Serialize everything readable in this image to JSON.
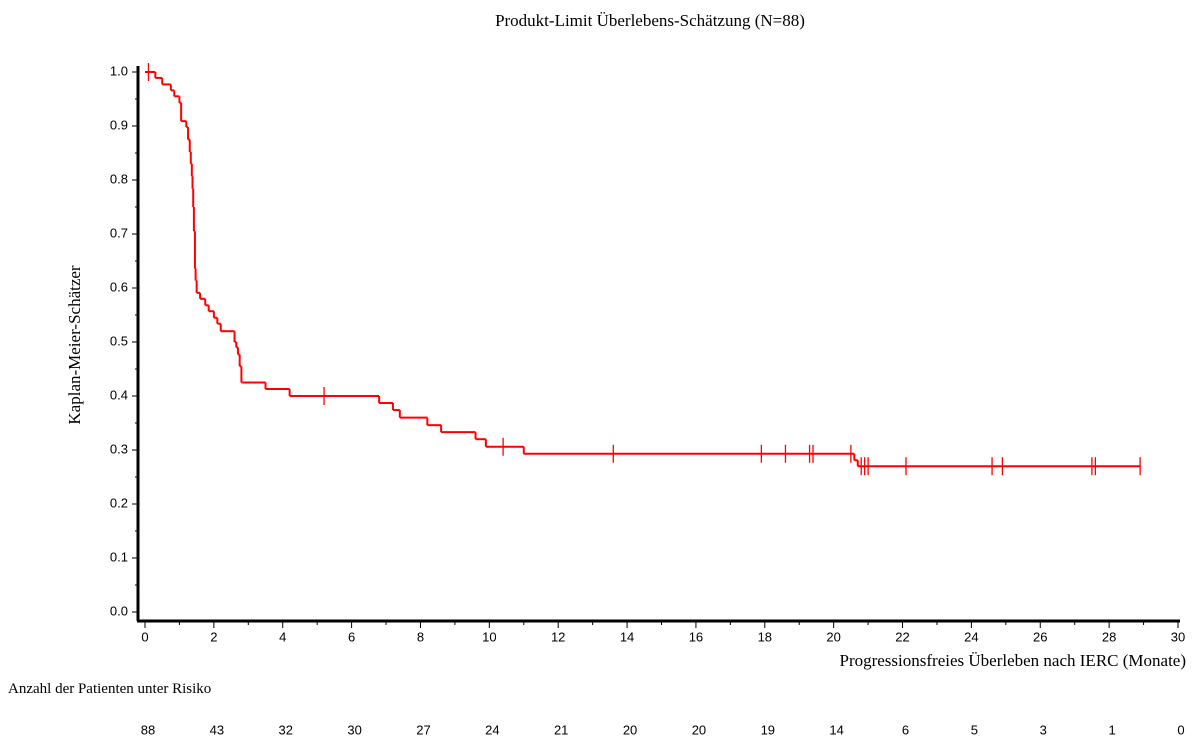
{
  "chart_data": {
    "type": "step",
    "title": "Produkt-Limit Überlebens-Schätzung (N=88)",
    "xlabel": "Progressionsfreies Überleben nach IERC (Monate)",
    "ylabel": "Kaplan-Meier-Schätzer",
    "color": "#ff0000",
    "x": [
      0,
      0.3,
      0.5,
      0.75,
      0.85,
      1.0,
      1.05,
      1.2,
      1.25,
      1.3,
      1.33,
      1.36,
      1.38,
      1.4,
      1.42,
      1.45,
      1.47,
      1.5,
      1.6,
      1.75,
      1.85,
      2.0,
      2.1,
      2.2,
      2.6,
      2.65,
      2.7,
      2.75,
      2.8,
      3.5,
      4.2,
      6.8,
      7.2,
      7.4,
      8.2,
      8.6,
      9.6,
      9.9,
      11.0,
      20.6,
      20.7,
      28.9
    ],
    "y": [
      1.0,
      0.989,
      0.977,
      0.966,
      0.955,
      0.943,
      0.909,
      0.898,
      0.875,
      0.852,
      0.83,
      0.807,
      0.784,
      0.75,
      0.705,
      0.636,
      0.614,
      0.591,
      0.58,
      0.568,
      0.557,
      0.545,
      0.534,
      0.52,
      0.5,
      0.49,
      0.477,
      0.455,
      0.425,
      0.413,
      0.4,
      0.387,
      0.374,
      0.36,
      0.346,
      0.333,
      0.32,
      0.306,
      0.293,
      0.281,
      0.27,
      0.27
    ],
    "censor": {
      "x": [
        0.1,
        5.2,
        10.4,
        13.6,
        17.9,
        18.6,
        19.3,
        19.4,
        20.5,
        20.8,
        20.9,
        21.0,
        22.1,
        24.6,
        24.9,
        27.5,
        27.6,
        28.9
      ],
      "y": [
        1.0,
        0.4,
        0.306,
        0.293,
        0.293,
        0.293,
        0.293,
        0.293,
        0.293,
        0.27,
        0.27,
        0.27,
        0.27,
        0.27,
        0.27,
        0.27,
        0.27,
        0.27
      ]
    },
    "xlim": [
      0,
      30
    ],
    "ylim": [
      0,
      1
    ],
    "xticks": [
      0,
      2,
      4,
      6,
      8,
      10,
      12,
      14,
      16,
      18,
      20,
      22,
      24,
      26,
      28,
      30
    ],
    "yticks": [
      {
        "value": 0,
        "label": "0.0"
      },
      0.1,
      0.2,
      0.3,
      0.4,
      0.5,
      0.6,
      0.7,
      0.8,
      0.9,
      {
        "value": 1,
        "label": "1.0"
      }
    ],
    "risk_table": {
      "label": "Anzahl der Patienten unter Risiko",
      "values": [
        88,
        43,
        32,
        30,
        27,
        24,
        21,
        20,
        20,
        19,
        14,
        6,
        5,
        3,
        1,
        0
      ]
    }
  }
}
